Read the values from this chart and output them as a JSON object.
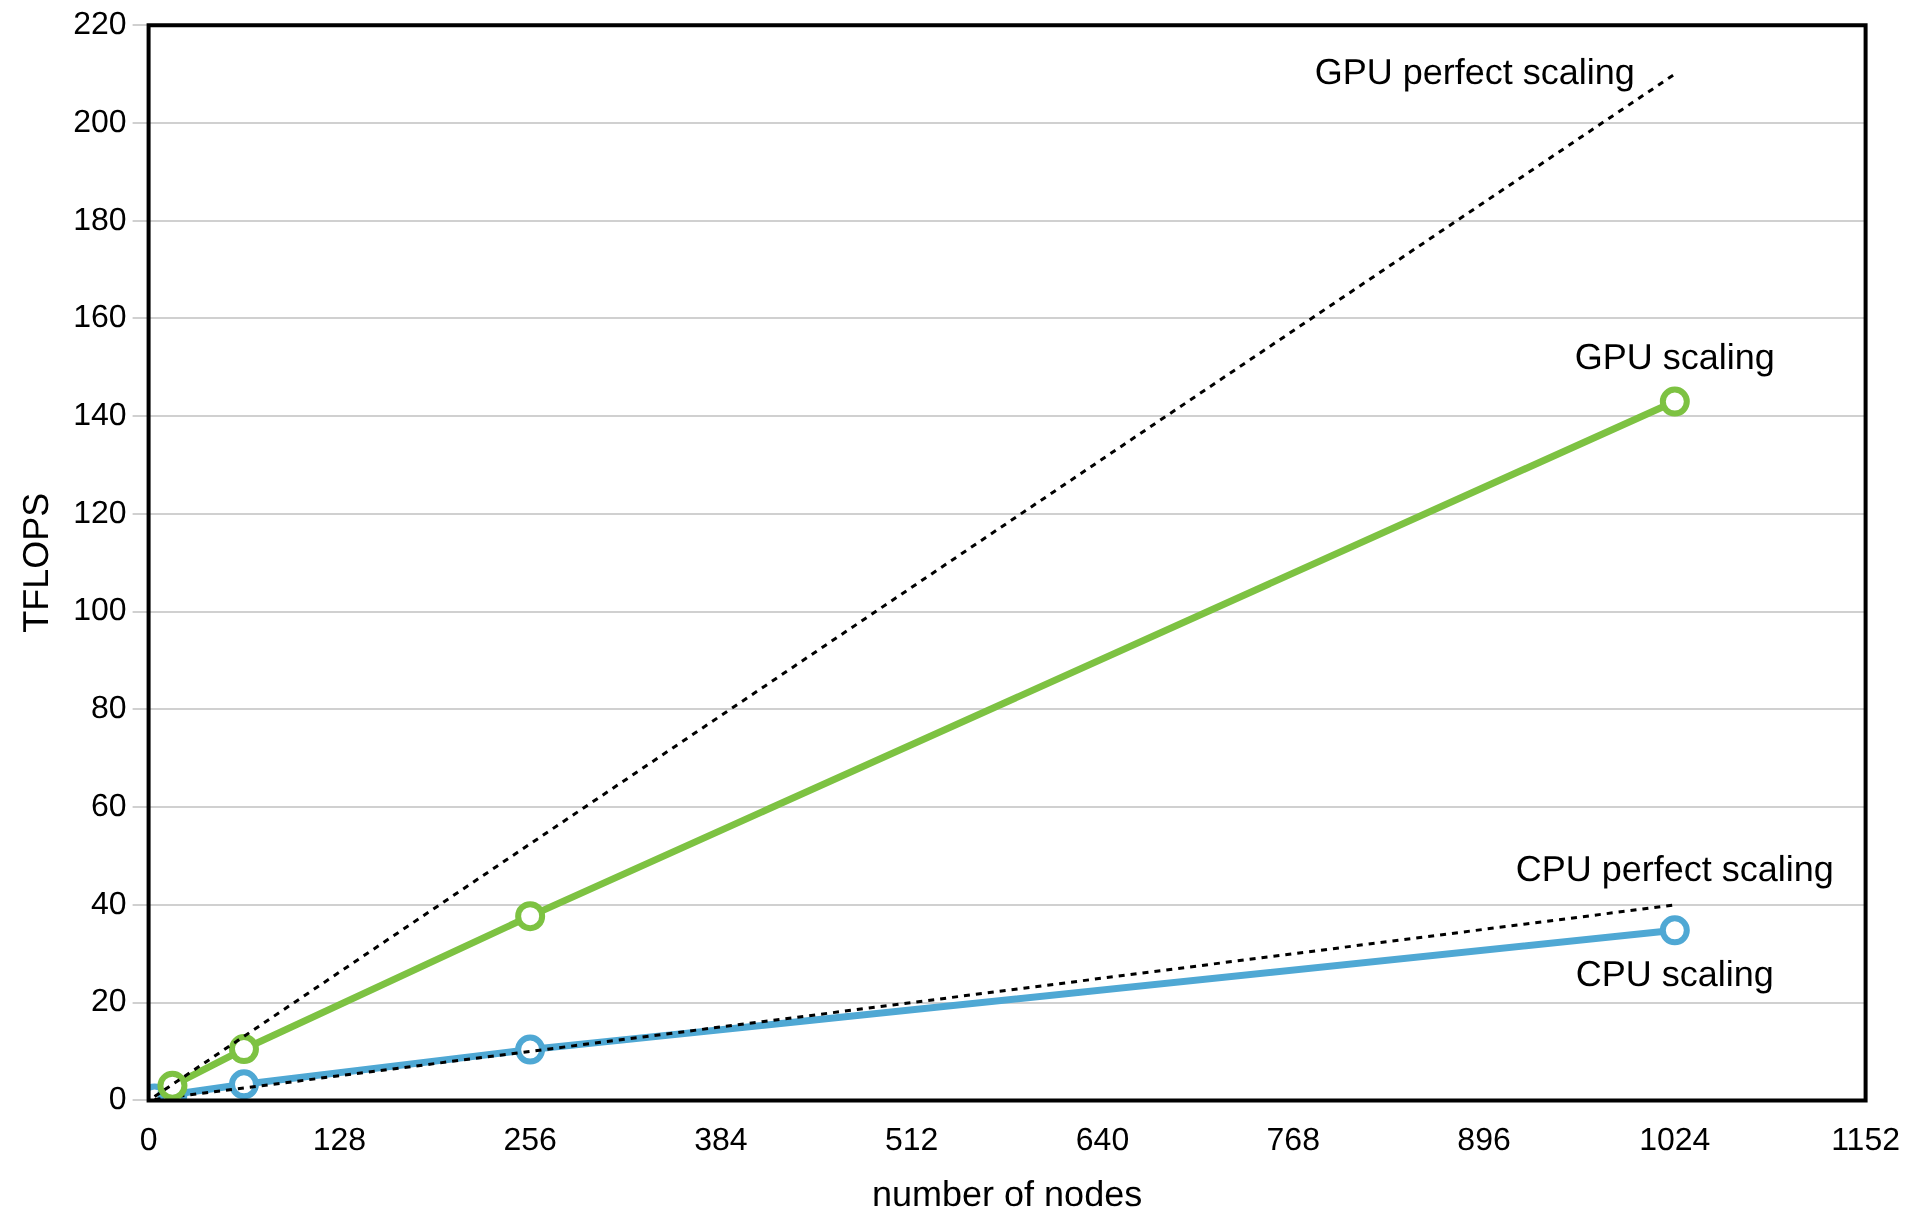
{
  "chart_data": {
    "type": "line",
    "xlabel": "number of nodes",
    "ylabel": "TFLOPS",
    "xlim": [
      0,
      1152
    ],
    "xticks": [
      0,
      128,
      256,
      384,
      512,
      640,
      768,
      896,
      1024,
      1152
    ],
    "ylim": [
      0,
      220
    ],
    "yticks": [
      0,
      20,
      40,
      60,
      80,
      100,
      120,
      140,
      160,
      180,
      200,
      220
    ],
    "grid": "y",
    "legend": false,
    "series": [
      {
        "name": "GPU perfect scaling",
        "color": "#000000",
        "x": [
          4,
          1024
        ],
        "values": [
          0.8,
          210
        ],
        "marker": "none",
        "line_style": "dotted"
      },
      {
        "name": "GPU scaling",
        "color": "#7dc242",
        "x": [
          16,
          64,
          256,
          1024
        ],
        "values": [
          3,
          10.5,
          37.7,
          143
        ],
        "marker": "circle",
        "line_style": "solid"
      },
      {
        "name": "CPU perfect scaling",
        "color": "#000000",
        "x": [
          4,
          1024
        ],
        "values": [
          0.2,
          40
        ],
        "marker": "none",
        "line_style": "dotted"
      },
      {
        "name": "CPU scaling",
        "color": "#4fa8d4",
        "x": [
          4,
          16,
          64,
          256,
          1024
        ],
        "values": [
          0.4,
          1.2,
          3.3,
          10.4,
          34.8
        ],
        "marker": "circle",
        "line_style": "solid"
      }
    ]
  }
}
